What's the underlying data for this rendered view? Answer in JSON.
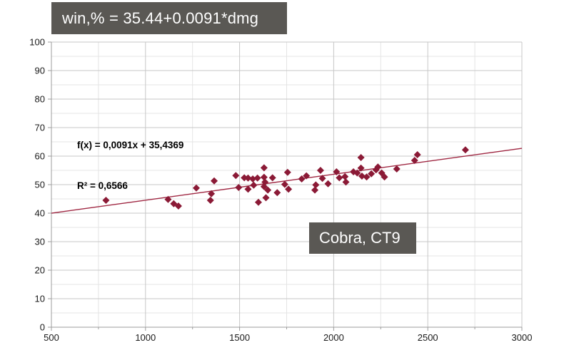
{
  "banner": {
    "text": "win,% = 35.44+0.0091*dmg"
  },
  "series_label": {
    "text": "Cobra, CT9"
  },
  "annotation": {
    "equation": "f(x) = 0,0091x + 35,4369",
    "r_squared": "R² = 0,6566"
  },
  "colors": {
    "banner_bg": "#5a5854",
    "banner_fg": "#ffffff",
    "marker": "#8b1a36",
    "trendline": "#9f2742",
    "grid_major": "#c7c7c7",
    "grid_minor": "#e4e4e4",
    "axis": "#9c9c9c",
    "tick_label": "#1a1a1a"
  },
  "chart_data": {
    "type": "scatter",
    "title": "win,% = 35.44+0.0091*dmg",
    "xlabel": "",
    "ylabel": "",
    "xlim": [
      500,
      3000
    ],
    "ylim": [
      0,
      100
    ],
    "x_major": 500,
    "x_minor": 250,
    "y_major": 10,
    "y_minor": 5,
    "x_ticks": [
      500,
      1000,
      1500,
      2000,
      2500,
      3000
    ],
    "y_ticks": [
      0,
      10,
      20,
      30,
      40,
      50,
      60,
      70,
      80,
      90,
      100
    ],
    "grid": true,
    "legend_position": "none",
    "marker_shape": "diamond",
    "marker_color": "#8b1a36",
    "line_color": "#9f2742",
    "trendline": {
      "slope": 0.0091,
      "intercept": 35.4369,
      "x_start": 500,
      "x_end": 3000
    },
    "series_name": "Cobra, CT9",
    "points": [
      [
        790,
        44.5
      ],
      [
        1120,
        44.8
      ],
      [
        1150,
        43.3
      ],
      [
        1175,
        42.5
      ],
      [
        1270,
        48.8
      ],
      [
        1345,
        44.5
      ],
      [
        1350,
        46.8
      ],
      [
        1365,
        51.3
      ],
      [
        1480,
        53.2
      ],
      [
        1495,
        49.0
      ],
      [
        1525,
        52.4
      ],
      [
        1545,
        52.3
      ],
      [
        1545,
        48.4
      ],
      [
        1570,
        52.0
      ],
      [
        1575,
        49.8
      ],
      [
        1595,
        52.3
      ],
      [
        1600,
        43.8
      ],
      [
        1630,
        55.9
      ],
      [
        1630,
        52.6
      ],
      [
        1635,
        50.9
      ],
      [
        1630,
        49.3
      ],
      [
        1640,
        45.4
      ],
      [
        1650,
        48.1
      ],
      [
        1675,
        52.4
      ],
      [
        1700,
        47.2
      ],
      [
        1740,
        50.1
      ],
      [
        1755,
        54.3
      ],
      [
        1760,
        48.4
      ],
      [
        1830,
        52.0
      ],
      [
        1855,
        53.1
      ],
      [
        1900,
        48.1
      ],
      [
        1905,
        49.9
      ],
      [
        1930,
        55.0
      ],
      [
        1940,
        52.2
      ],
      [
        1970,
        50.3
      ],
      [
        2015,
        54.5
      ],
      [
        2030,
        52.4
      ],
      [
        2060,
        52.8
      ],
      [
        2065,
        50.9
      ],
      [
        2105,
        54.5
      ],
      [
        2125,
        54.1
      ],
      [
        2145,
        59.5
      ],
      [
        2145,
        55.8
      ],
      [
        2150,
        53.0
      ],
      [
        2175,
        52.7
      ],
      [
        2200,
        53.8
      ],
      [
        2225,
        55.2
      ],
      [
        2235,
        56.2
      ],
      [
        2255,
        54.1
      ],
      [
        2270,
        52.7
      ],
      [
        2335,
        55.5
      ],
      [
        2430,
        58.5
      ],
      [
        2445,
        60.5
      ],
      [
        2700,
        62.2
      ]
    ]
  }
}
